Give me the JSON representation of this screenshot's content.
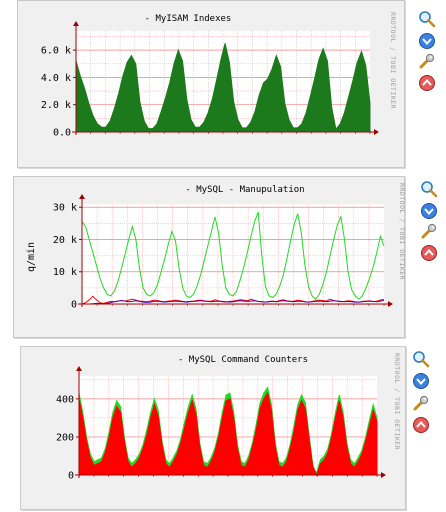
{
  "watermark": "RRDTOOL / TOBI OETIKER",
  "icons": [
    "zoom-icon",
    "download-icon",
    "settings-wrench-icon",
    "move-up-icon"
  ],
  "colors": {
    "panel_bg": "#f0f0f0",
    "plot_bg": "#ffffff",
    "grid": "#f1b0b0",
    "axis": "#a00000",
    "green_area": "#1c7a1c",
    "bright_green": "#22d922",
    "red": "#ff0000",
    "dark_red": "#b00000",
    "purple": "#5500aa"
  },
  "chart_data": [
    {
      "type": "area",
      "title": "- MyISAM Indexes",
      "ylabel": "",
      "ylim": [
        0,
        7400
      ],
      "yticks": [
        "0.0",
        "2.0 k",
        "4.0 k",
        "6.0 k"
      ],
      "ytick_values": [
        0,
        2000,
        4000,
        6000
      ],
      "series": [
        {
          "color": "#1c7a1c",
          "values": [
            5200,
            4100,
            3200,
            2100,
            1200,
            600,
            350,
            350,
            800,
            1700,
            2800,
            4100,
            5100,
            5600,
            5000,
            2200,
            800,
            250,
            250,
            600,
            1500,
            2500,
            3600,
            5000,
            6000,
            5200,
            2400,
            900,
            350,
            350,
            700,
            1400,
            2400,
            3800,
            5300,
            6500,
            5100,
            2200,
            900,
            300,
            300,
            700,
            1500,
            2700,
            3600,
            3900,
            4600,
            5600,
            4800,
            2100,
            900,
            300,
            300,
            600,
            1400,
            2600,
            3900,
            5300,
            6100,
            5200,
            1800,
            200,
            600,
            1400,
            2600,
            3800,
            5100,
            5900,
            4900,
            2100
          ]
        }
      ]
    },
    {
      "type": "line",
      "title": "- MySQL - Manupulation",
      "ylabel": "q/min",
      "ylim": [
        0,
        31000
      ],
      "yticks": [
        "0",
        "10 k",
        "20 k",
        "30 k"
      ],
      "ytick_values": [
        0,
        10000,
        20000,
        30000
      ],
      "series": [
        {
          "color": "#22d922",
          "values": [
            25500,
            24000,
            20000,
            16000,
            12000,
            8000,
            5000,
            3000,
            2500,
            4000,
            7000,
            11000,
            15500,
            20000,
            24000,
            20000,
            11000,
            5000,
            3000,
            2500,
            3500,
            6000,
            10000,
            14000,
            18500,
            22500,
            19500,
            11000,
            5000,
            2500,
            2000,
            3000,
            5500,
            9000,
            13500,
            18000,
            22500,
            27000,
            22000,
            12000,
            5000,
            3000,
            2500,
            4000,
            7500,
            11500,
            16000,
            21000,
            25500,
            28500,
            15000,
            5500,
            2500,
            2000,
            3000,
            5500,
            9000,
            14000,
            19500,
            24500,
            28000,
            22000,
            12000,
            5500,
            2500,
            1500,
            3000,
            6000,
            10000,
            15000,
            20000,
            24500,
            27000,
            20000,
            10000,
            4500,
            2500,
            1500,
            2500,
            5000,
            8000,
            11500,
            16000,
            21000,
            18000
          ]
        },
        {
          "color": "#ff0000",
          "values": [
            0,
            400,
            1300,
            2400,
            1300,
            400,
            200,
            500,
            800,
            700,
            900,
            1100,
            900,
            1200,
            1500,
            1200,
            900,
            800,
            700,
            900,
            1200,
            1100,
            800,
            700,
            900,
            1000,
            1200,
            1000,
            800,
            700,
            800,
            900,
            1100,
            1200,
            1000,
            800,
            900,
            1300,
            1000,
            700,
            600,
            800,
            900,
            1100,
            1300,
            1200,
            1000,
            1500,
            1100,
            800,
            700,
            600,
            800,
            900,
            700,
            1100,
            1300,
            1000,
            800,
            900,
            1200,
            1000,
            700,
            600,
            800,
            1000,
            1200,
            1100,
            900,
            1500,
            1100,
            900,
            700,
            800,
            1000,
            900,
            700,
            600,
            800,
            900,
            1000,
            700,
            900,
            1200,
            1500
          ]
        },
        {
          "color": "#5500aa",
          "values": [
            0,
            0,
            0,
            100,
            200,
            150,
            100,
            200,
            400,
            700,
            900,
            1100,
            900,
            700,
            800,
            1000,
            800,
            600,
            500,
            600,
            800,
            900,
            700,
            600,
            700,
            800,
            900,
            800,
            700,
            600,
            700,
            800,
            900,
            1000,
            900,
            800,
            700,
            800,
            900,
            800,
            700,
            600,
            700,
            900,
            1000,
            900,
            800,
            900,
            1000,
            800,
            700,
            600,
            700,
            800,
            700,
            900,
            1000,
            900,
            800,
            700,
            900,
            800,
            700,
            600,
            700,
            800,
            900,
            800,
            700,
            900,
            1000,
            900,
            800,
            700,
            800,
            700,
            600,
            600,
            700,
            800,
            900,
            800,
            700,
            900,
            1100
          ]
        }
      ]
    },
    {
      "type": "area",
      "title": "- MySQL Command Counters",
      "ylabel": "",
      "ylim": [
        0,
        520
      ],
      "yticks": [
        "0",
        "200",
        "400"
      ],
      "ytick_values": [
        0,
        200,
        400
      ],
      "series": [
        {
          "color": "#22d922",
          "values": [
            430,
            330,
            200,
            110,
            70,
            80,
            90,
            140,
            230,
            330,
            390,
            360,
            200,
            90,
            60,
            80,
            110,
            160,
            240,
            330,
            400,
            340,
            180,
            80,
            60,
            90,
            130,
            190,
            280,
            360,
            420,
            350,
            170,
            70,
            60,
            90,
            140,
            220,
            330,
            420,
            430,
            330,
            160,
            70,
            60,
            100,
            170,
            270,
            380,
            430,
            460,
            370,
            170,
            70,
            60,
            90,
            160,
            260,
            370,
            420,
            380,
            210,
            50,
            10,
            80,
            100,
            140,
            220,
            330,
            420,
            330,
            170,
            80,
            60,
            90,
            130,
            200,
            290,
            370,
            300
          ]
        },
        {
          "color": "#ff0000",
          "values": [
            400,
            300,
            180,
            90,
            50,
            60,
            70,
            120,
            200,
            300,
            360,
            330,
            180,
            70,
            40,
            60,
            90,
            140,
            210,
            300,
            370,
            310,
            160,
            60,
            40,
            70,
            110,
            170,
            250,
            330,
            390,
            320,
            150,
            50,
            40,
            70,
            120,
            200,
            300,
            390,
            400,
            300,
            140,
            50,
            40,
            80,
            150,
            240,
            350,
            400,
            430,
            340,
            150,
            50,
            40,
            70,
            140,
            230,
            340,
            390,
            350,
            190,
            40,
            0,
            60,
            80,
            120,
            200,
            300,
            390,
            300,
            150,
            60,
            40,
            70,
            110,
            180,
            260,
            340,
            280
          ]
        }
      ]
    }
  ]
}
